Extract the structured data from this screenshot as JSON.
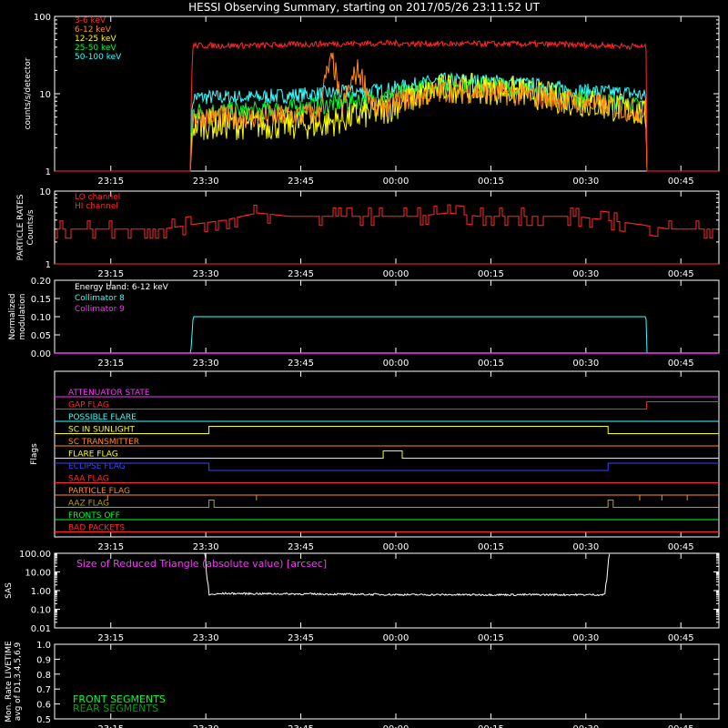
{
  "title": "HESSI Observing Summary, starting on 2017/05/26 23:11:52 UT",
  "colors": {
    "background": "#000000",
    "axes": "#ffffff",
    "red": "#ff2a2a",
    "orange": "#ff8c1a",
    "yellow": "#ffff00",
    "green": "#00ff33",
    "cyan": "#33ffff",
    "magenta": "#ff33ff",
    "blue": "#3344ff",
    "olive": "#b8a000",
    "dark_green": "#00a000"
  },
  "time_axis": {
    "ticks": [
      "23:15",
      "23:30",
      "23:45",
      "00:00",
      "00:15",
      "00:30",
      "00:45"
    ],
    "tick_minutes": [
      -3,
      12,
      27,
      42,
      57,
      72,
      87
    ],
    "range_minutes": [
      -11.87,
      93.0
    ],
    "unit": "minutes after 23:18 UT"
  },
  "chart_data": [
    {
      "id": "count_rates",
      "type": "line",
      "ylabel": "counts/s/detector",
      "yscale": "log",
      "ylim": [
        1,
        100
      ],
      "yticks": [
        "1",
        "10",
        "100"
      ],
      "series": [
        {
          "name": "3-6 keV",
          "color": "#ff2a2a",
          "x": [
            -11.87,
            9.63,
            10,
            20,
            30,
            40,
            50,
            60,
            70,
            80,
            81.5,
            81.6,
            93
          ],
          "y": [
            1,
            1,
            42,
            42,
            44,
            45,
            44,
            44,
            43,
            41,
            40,
            1,
            1
          ]
        },
        {
          "name": "6-12 keV",
          "color": "#ff8c1a",
          "x": [
            -11.87,
            9.63,
            10,
            20,
            30,
            32,
            33.2,
            34,
            36,
            38,
            39,
            40,
            45,
            50,
            60,
            70,
            80,
            81.5,
            81.6,
            93
          ],
          "y": [
            1,
            1,
            5,
            5,
            5.5,
            27,
            6,
            8,
            20,
            8,
            6,
            7,
            9,
            11,
            10,
            8,
            6,
            6,
            1,
            1
          ]
        },
        {
          "name": "12-25 keV",
          "color": "#ffff00",
          "x": [
            -11.87,
            9.63,
            10,
            20,
            30,
            40,
            45,
            50,
            60,
            70,
            80,
            81.5,
            81.6,
            93
          ],
          "y": [
            1,
            1,
            4,
            4,
            4,
            6,
            9,
            12,
            11,
            8,
            6,
            5,
            1,
            1
          ]
        },
        {
          "name": "25-50 keV",
          "color": "#00ff33",
          "x": [
            -11.87,
            9.63,
            10,
            20,
            30,
            40,
            45,
            50,
            60,
            70,
            80,
            81.5,
            81.6,
            93
          ],
          "y": [
            1,
            1,
            6,
            6,
            7,
            9,
            11,
            14,
            12,
            9,
            7,
            7,
            1,
            1
          ]
        },
        {
          "name": "50-100 keV",
          "color": "#33ffff",
          "x": [
            -11.87,
            9.63,
            10,
            20,
            30,
            40,
            45,
            50,
            60,
            70,
            80,
            81.5,
            81.6,
            93
          ],
          "y": [
            1,
            1,
            9,
            9,
            10,
            11,
            13,
            15,
            14,
            11,
            10,
            9,
            1,
            1
          ]
        }
      ]
    },
    {
      "id": "particle_rates",
      "type": "line",
      "ylabel": "PARTICLE RATES Counts/s",
      "yscale": "log",
      "ylim": [
        1,
        10
      ],
      "yticks": [
        "1",
        "10"
      ],
      "series": [
        {
          "name": "LO channel",
          "color": "#ff2a2a",
          "x": [
            -11.87,
            0,
            5,
            10,
            15,
            20,
            25,
            30,
            35,
            40,
            45,
            50,
            55,
            60,
            65,
            70,
            75,
            80,
            85,
            93
          ],
          "y": [
            3,
            3,
            3,
            3.5,
            4,
            5,
            4.5,
            4.5,
            4.5,
            4.5,
            4.5,
            5,
            4.5,
            4.5,
            4.5,
            4.5,
            4,
            3.5,
            3,
            3
          ]
        },
        {
          "name": "HI channel",
          "color": "#ff2a2a",
          "x": [
            -11.87,
            93
          ],
          "y": [
            1,
            1
          ]
        }
      ]
    },
    {
      "id": "modulation",
      "type": "line",
      "ylabel": "Normalized modulation",
      "ylim": [
        0,
        0.2
      ],
      "yticks": [
        "0.00",
        "0.05",
        "0.10",
        "0.15",
        "0.20"
      ],
      "annotation": "Energy band: 6-12 keV",
      "series": [
        {
          "name": "Collimator 8",
          "color": "#33ffff",
          "x": [
            -11.87,
            9.63,
            10,
            81.5,
            81.6,
            93
          ],
          "y": [
            0,
            0,
            0.1,
            0.1,
            0,
            0
          ]
        },
        {
          "name": "Collimator 9",
          "color": "#ff33ff",
          "x": [
            -11.87,
            93
          ],
          "y": [
            0,
            0
          ]
        }
      ]
    },
    {
      "id": "flags",
      "type": "line",
      "ylabel": "Flags",
      "series": [
        {
          "name": "ATTENUATOR STATE",
          "color": "#ff33ff",
          "x": [
            -11.87,
            93
          ],
          "y": [
            0,
            0
          ]
        },
        {
          "name": "GAP FLAG",
          "color": "#ff2a2a",
          "x": [
            -11.87,
            81.6,
            93
          ],
          "y": [
            0,
            1,
            1
          ]
        },
        {
          "name": "POSSIBLE FLARE",
          "color": "#33ffff",
          "x": [
            -11.87,
            93
          ],
          "y": [
            0,
            0
          ]
        },
        {
          "name": "SC IN SUNLIGHT",
          "color": "#ffff00",
          "x": [
            -11.87,
            12.5,
            75.5,
            93
          ],
          "y": [
            0,
            1,
            0,
            0
          ]
        },
        {
          "name": "SC TRANSMITTER",
          "color": "#ff8c1a",
          "x": [
            -11.87,
            93
          ],
          "y": [
            0,
            0
          ]
        },
        {
          "name": "FLARE FLAG",
          "color": "#ffff00",
          "x": [
            -11.87,
            40,
            43,
            93
          ],
          "y": [
            0,
            1,
            0,
            0
          ]
        },
        {
          "name": "ECLIPSE FLAG",
          "color": "#3344ff",
          "x": [
            -11.87,
            12.5,
            75.5,
            93
          ],
          "y": [
            1,
            0,
            1,
            1
          ]
        },
        {
          "name": "SAA FLAG",
          "color": "#ff2a2a",
          "x": [
            -11.87,
            93
          ],
          "y": [
            0,
            0
          ]
        },
        {
          "name": "PARTICLE FLAG",
          "color": "#ff8c1a",
          "x": [
            -11.87,
            93
          ],
          "y": [
            0,
            0
          ]
        },
        {
          "name": "AAZ FLAG",
          "color": "#b8a000",
          "x": [
            -11.87,
            12.5,
            13.3,
            75.5,
            76.3,
            93
          ],
          "y": [
            0,
            1,
            0,
            1,
            0,
            0
          ]
        },
        {
          "name": "FRONTS OFF",
          "color": "#00ff33",
          "x": [
            -11.87,
            93
          ],
          "y": [
            0,
            0
          ]
        },
        {
          "name": "BAD PACKETS",
          "color": "#ff2a2a",
          "x": [
            -11.87,
            93
          ],
          "y": [
            0,
            0
          ]
        }
      ]
    },
    {
      "id": "sas",
      "type": "line",
      "ylabel": "SAS",
      "yscale": "log",
      "ylim": [
        0.01,
        100
      ],
      "yticks": [
        "0.01",
        "0.10",
        "1.00",
        "10.00",
        "100.00"
      ],
      "annotation": "Size of Reduced Triangle (absolute value) [arcsec]",
      "series": [
        {
          "name": "",
          "color": "#ffffff",
          "x": [
            11.8,
            12.1,
            12.5,
            15,
            30,
            45,
            60,
            75,
            75.4,
            75.8
          ],
          "y": [
            100,
            5,
            0.6,
            0.7,
            0.65,
            0.6,
            0.6,
            0.6,
            5,
            100
          ]
        }
      ]
    },
    {
      "id": "livetime",
      "type": "line",
      "ylabel": "Mon. Rate LIVETIME avg of D1,3,4,5,6,9",
      "ylim": [
        0.5,
        1.0
      ],
      "yticks": [
        "0.5",
        "0.6",
        "0.7",
        "0.8",
        "0.9",
        "1.0"
      ],
      "series": [
        {
          "name": "FRONT SEGMENTS",
          "color": "#00ff33",
          "x": [],
          "y": []
        },
        {
          "name": "REAR SEGMENTS",
          "color": "#00a000",
          "x": [],
          "y": []
        }
      ]
    }
  ]
}
